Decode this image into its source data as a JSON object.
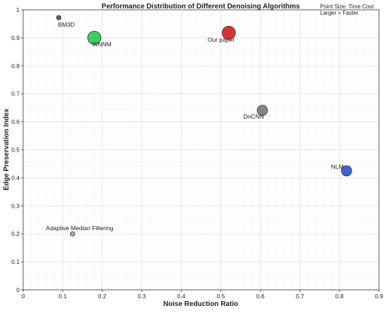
{
  "chart_data": {
    "type": "scatter",
    "title": "Performance Distribution of Different Denoising Algorithms",
    "xlabel": "Noise Reduction Ratio",
    "ylabel": "Edge Preservation Index",
    "xlim": [
      0,
      0.9
    ],
    "ylim": [
      0,
      1
    ],
    "x_ticks": [
      "0",
      "0.1",
      "0.2",
      "0.3",
      "0.4",
      "0.5",
      "0.6",
      "0.7",
      "0.8",
      "0.9"
    ],
    "y_ticks": [
      "0",
      "0.1",
      "0.2",
      "0.3",
      "0.4",
      "0.5",
      "0.6",
      "0.7",
      "0.8",
      "0.9",
      "1"
    ],
    "grid": true,
    "annotation": {
      "lines": [
        "Point Size: Time Cost",
        "Larger = Faster"
      ]
    },
    "points": [
      {
        "label": "BM3D",
        "x": 0.09,
        "y": 0.972,
        "size": 1,
        "color": "#555555"
      },
      {
        "label": "WNNM",
        "x": 0.18,
        "y": 0.9,
        "size": 4,
        "color": "#2ecc5a"
      },
      {
        "label": "Our paper",
        "x": 0.52,
        "y": 0.918,
        "size": 4,
        "color": "#d62728"
      },
      {
        "label": "DnCNN",
        "x": 0.605,
        "y": 0.641,
        "size": 3,
        "color": "#808080"
      },
      {
        "label": "NLM",
        "x": 0.818,
        "y": 0.425,
        "size": 3,
        "color": "#2f5fcc"
      },
      {
        "label": "Adaptive Median Filtering",
        "x": 0.125,
        "y": 0.2,
        "size": 1,
        "color": "#a6a6a6"
      }
    ]
  }
}
